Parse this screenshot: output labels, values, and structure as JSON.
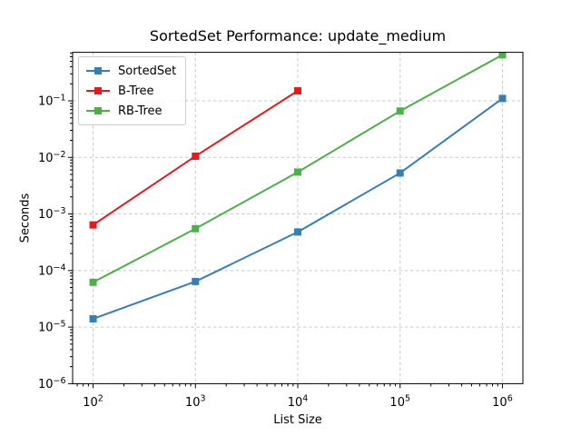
{
  "figure": {
    "title": "SortedSet Performance: update_medium",
    "xlabel": "List Size",
    "ylabel": "Seconds"
  },
  "legend": {
    "position": "upper left",
    "items": [
      {
        "label": "SortedSet",
        "color": "#377eb8",
        "marker": "square"
      },
      {
        "label": "B-Tree",
        "color": "#e41a1c",
        "marker": "square"
      },
      {
        "label": "RB-Tree",
        "color": "#4daf4a",
        "marker": "square"
      }
    ]
  },
  "chart_data": {
    "type": "line",
    "title": "SortedSet Performance: update_medium",
    "xlabel": "List Size",
    "ylabel": "Seconds",
    "xscale": "log",
    "yscale": "log",
    "grid": {
      "which": "major",
      "style": "dashed",
      "color": "#c9c9c9"
    },
    "legend_position": "upper left",
    "x": [
      100,
      1000,
      10000,
      100000,
      1000000
    ],
    "series": [
      {
        "name": "SortedSet",
        "color": "#377eb8",
        "marker": "square",
        "values": [
          1.4e-05,
          6.4e-05,
          0.00048,
          0.0053,
          0.11
        ]
      },
      {
        "name": "B-Tree",
        "color": "#e41a1c",
        "marker": "square",
        "values": [
          0.00064,
          0.0105,
          0.15,
          null,
          null
        ]
      },
      {
        "name": "RB-Tree",
        "color": "#4daf4a",
        "marker": "square",
        "values": [
          6.2e-05,
          0.00055,
          0.0055,
          0.066,
          0.65
        ]
      }
    ],
    "xlim": [
      63.095734,
      1584893.2
    ],
    "ylim": [
      1e-06,
      0.72
    ],
    "xticks": [
      {
        "v": 100,
        "exp": "2"
      },
      {
        "v": 1000,
        "exp": "3"
      },
      {
        "v": 10000,
        "exp": "4"
      },
      {
        "v": 100000,
        "exp": "5"
      },
      {
        "v": 1000000,
        "exp": "6"
      }
    ],
    "yticks": [
      {
        "v": 1e-06,
        "exp": "−6"
      },
      {
        "v": 1e-05,
        "exp": "−5"
      },
      {
        "v": 0.0001,
        "exp": "−4"
      },
      {
        "v": 0.001,
        "exp": "−3"
      },
      {
        "v": 0.01,
        "exp": "−2"
      },
      {
        "v": 0.1,
        "exp": "−1"
      }
    ]
  }
}
